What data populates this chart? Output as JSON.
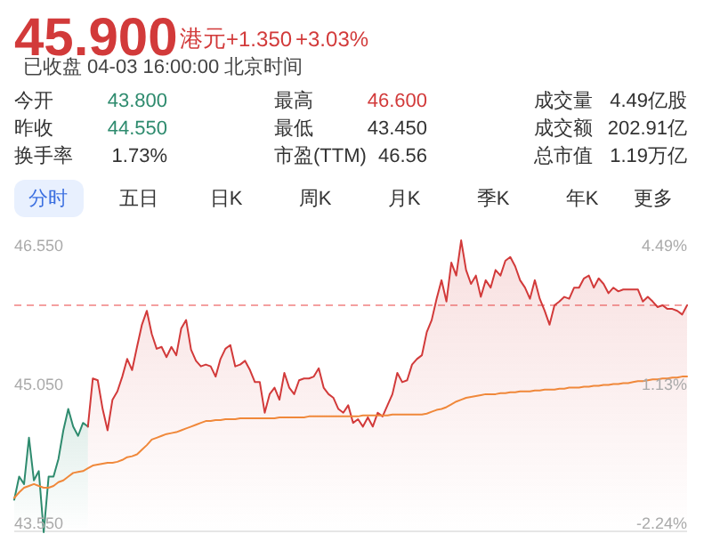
{
  "chart_data": {
    "type": "line",
    "title": "45.900",
    "subtitle": "已收盘 04-03 16:00:00 北京时间",
    "annotations": [
      "港元",
      "+1.350",
      "+3.03%",
      "今开",
      "43.800",
      "最高",
      "46.600",
      "成交量",
      "4.49亿股",
      "昨收",
      "44.550",
      "最低",
      "43.450",
      "成交额",
      "202.91亿",
      "换手率",
      "1.73%",
      "市盈(TTM)",
      "46.56",
      "总市值",
      "1.19万亿",
      "分时",
      "五日",
      "日K",
      "周K",
      "月K",
      "季K",
      "年K",
      "更多"
    ],
    "categories": [
      null,
      null,
      null,
      null,
      null,
      null,
      null,
      null,
      null,
      null,
      null,
      null,
      null,
      null,
      null,
      null,
      null,
      null,
      null,
      null,
      null,
      null,
      null,
      null,
      null,
      null,
      null,
      null,
      null,
      null,
      null,
      null,
      null,
      null,
      null,
      null,
      null,
      null,
      null,
      null,
      null,
      null,
      null,
      null,
      null,
      null,
      null,
      null,
      null,
      null,
      null,
      null,
      null,
      null,
      null,
      null,
      null,
      null,
      null,
      null,
      null,
      null,
      null,
      null,
      null,
      null,
      null,
      null,
      null,
      null,
      null,
      null,
      null,
      null,
      null,
      null,
      null,
      null,
      null,
      null,
      null,
      null,
      null,
      null,
      null,
      null,
      null,
      null,
      null,
      null,
      null,
      null,
      null,
      null,
      null,
      null,
      null,
      null,
      null,
      null,
      null,
      null,
      null,
      null,
      null,
      null,
      null,
      null,
      null,
      null,
      null,
      null,
      null,
      null,
      null,
      null,
      null,
      null,
      null,
      null,
      null,
      null,
      null,
      null,
      null,
      null,
      null,
      null,
      null,
      null,
      null,
      null,
      null,
      null,
      null,
      null,
      null,
      null
    ],
    "series": [
      {
        "type": "area",
        "color": "#2e8b6e",
        "values": [
          43.8,
          44.05,
          43.97,
          44.47,
          44.01,
          44.11,
          43.45,
          44.05,
          44.05,
          44.24,
          44.55,
          44.78,
          44.59,
          44.49,
          44.63,
          44.59,
          null,
          null,
          null,
          null,
          null,
          null,
          null,
          null,
          null,
          null,
          null,
          null,
          null,
          null,
          null,
          null,
          null,
          null,
          null,
          null,
          null,
          null,
          null,
          null,
          null,
          null,
          null,
          null,
          null,
          null,
          null,
          null,
          null,
          null,
          null,
          null,
          null,
          null,
          null,
          null,
          null,
          null,
          null,
          null,
          null,
          null,
          null,
          null,
          null,
          null,
          null,
          null,
          null,
          null,
          null,
          null,
          null,
          null,
          null,
          null,
          null,
          null,
          null,
          null,
          null,
          null,
          null,
          null,
          null,
          null,
          null,
          null,
          null,
          null,
          null,
          null,
          null,
          null,
          null,
          null,
          null,
          null,
          null,
          null,
          null,
          null,
          null,
          null,
          null,
          null,
          null,
          null,
          null,
          null,
          null,
          null,
          null,
          null,
          null,
          null,
          null,
          null,
          null,
          null,
          null,
          null,
          null,
          null,
          null,
          null,
          null,
          null,
          null,
          null,
          null,
          null,
          null,
          null,
          null,
          null,
          null,
          null
        ]
      },
      {
        "type": "area",
        "color": "#d23a3a",
        "values": [
          null,
          null,
          null,
          null,
          null,
          null,
          null,
          null,
          null,
          null,
          null,
          null,
          null,
          null,
          null,
          44.59,
          45.11,
          45.09,
          44.78,
          44.55,
          44.88,
          44.97,
          45.13,
          45.32,
          45.2,
          45.45,
          45.69,
          45.84,
          45.59,
          45.43,
          45.45,
          45.34,
          45.45,
          45.36,
          45.65,
          45.74,
          45.42,
          45.3,
          45.24,
          45.26,
          45.24,
          45.13,
          45.32,
          45.43,
          45.47,
          45.24,
          45.26,
          45.3,
          45.2,
          45.07,
          45.07,
          44.74,
          44.94,
          45.01,
          44.88,
          45.17,
          45.01,
          44.94,
          45.09,
          45.11,
          45.11,
          45.13,
          45.22,
          45.01,
          44.94,
          44.9,
          44.78,
          44.74,
          44.82,
          44.63,
          44.67,
          44.59,
          44.69,
          44.59,
          44.74,
          44.7,
          44.82,
          44.94,
          45.17,
          45.07,
          45.09,
          45.26,
          45.32,
          45.36,
          45.61,
          45.74,
          45.97,
          46.17,
          45.94,
          46.36,
          46.22,
          46.6,
          46.28,
          46.13,
          46.22,
          45.99,
          46.17,
          46.09,
          46.28,
          46.22,
          46.38,
          46.42,
          46.32,
          46.17,
          46.09,
          45.97,
          46.17,
          45.97,
          45.84,
          45.69,
          45.9,
          45.94,
          45.99,
          45.97,
          46.09,
          46.09,
          46.19,
          46.22,
          46.09,
          46.19,
          46.13,
          46.03,
          46.09,
          46.05,
          46.07,
          46.07,
          46.07,
          46.07,
          45.94,
          45.99,
          45.94,
          45.88,
          45.9,
          45.86,
          45.86,
          45.84,
          45.8,
          45.9
        ]
      },
      {
        "color": "#f0883a",
        "values": [
          43.82,
          43.88,
          43.93,
          43.95,
          43.97,
          43.95,
          43.93,
          43.93,
          43.95,
          43.99,
          44.01,
          44.05,
          44.09,
          44.1,
          44.11,
          44.14,
          44.17,
          44.18,
          44.19,
          44.2,
          44.2,
          44.21,
          44.23,
          44.26,
          44.27,
          44.29,
          44.34,
          44.39,
          44.45,
          44.47,
          44.49,
          44.51,
          44.52,
          44.53,
          44.55,
          44.57,
          44.59,
          44.61,
          44.63,
          44.65,
          44.65,
          44.66,
          44.66,
          44.67,
          44.67,
          44.67,
          44.68,
          44.68,
          44.68,
          44.68,
          44.68,
          44.68,
          44.68,
          44.68,
          44.69,
          44.69,
          44.69,
          44.69,
          44.69,
          44.69,
          44.7,
          44.7,
          44.7,
          44.7,
          44.7,
          44.7,
          44.7,
          44.7,
          44.7,
          44.7,
          44.7,
          44.71,
          44.71,
          44.71,
          44.71,
          44.71,
          44.71,
          44.72,
          44.72,
          44.72,
          44.72,
          44.72,
          44.72,
          44.72,
          44.73,
          44.75,
          44.77,
          44.78,
          44.8,
          44.83,
          44.86,
          44.88,
          44.9,
          44.91,
          44.92,
          44.93,
          44.94,
          44.94,
          44.94,
          44.95,
          44.95,
          44.96,
          44.96,
          44.97,
          44.97,
          44.97,
          44.98,
          44.98,
          44.99,
          44.99,
          44.99,
          45.0,
          45.0,
          45.01,
          45.01,
          45.01,
          45.02,
          45.02,
          45.03,
          45.03,
          45.04,
          45.04,
          45.05,
          45.05,
          45.06,
          45.06,
          45.07,
          45.08,
          45.08,
          45.09,
          45.1,
          45.1,
          45.11,
          45.11,
          45.12,
          45.12,
          45.13,
          45.13
        ]
      }
    ],
    "ylim": [
      43.45,
      46.62
    ],
    "yticks": [
      {
        "value": 43.55,
        "label": "43.550"
      },
      {
        "value": 45.05,
        "label": "45.050"
      },
      {
        "value": 46.55,
        "label": "46.550"
      }
    ],
    "y2lim": [
      -2.46,
      4.65
    ],
    "y2ticks": [
      {
        "value": -2.24,
        "label": "-2.24%"
      },
      {
        "value": 1.13,
        "label": "1.13%"
      },
      {
        "value": 4.49,
        "label": "4.49%"
      }
    ],
    "ref_lines": [
      {
        "axis": "y",
        "value": 45.9,
        "color": "#f4a0a0",
        "line_style": "dashed"
      }
    ]
  }
}
